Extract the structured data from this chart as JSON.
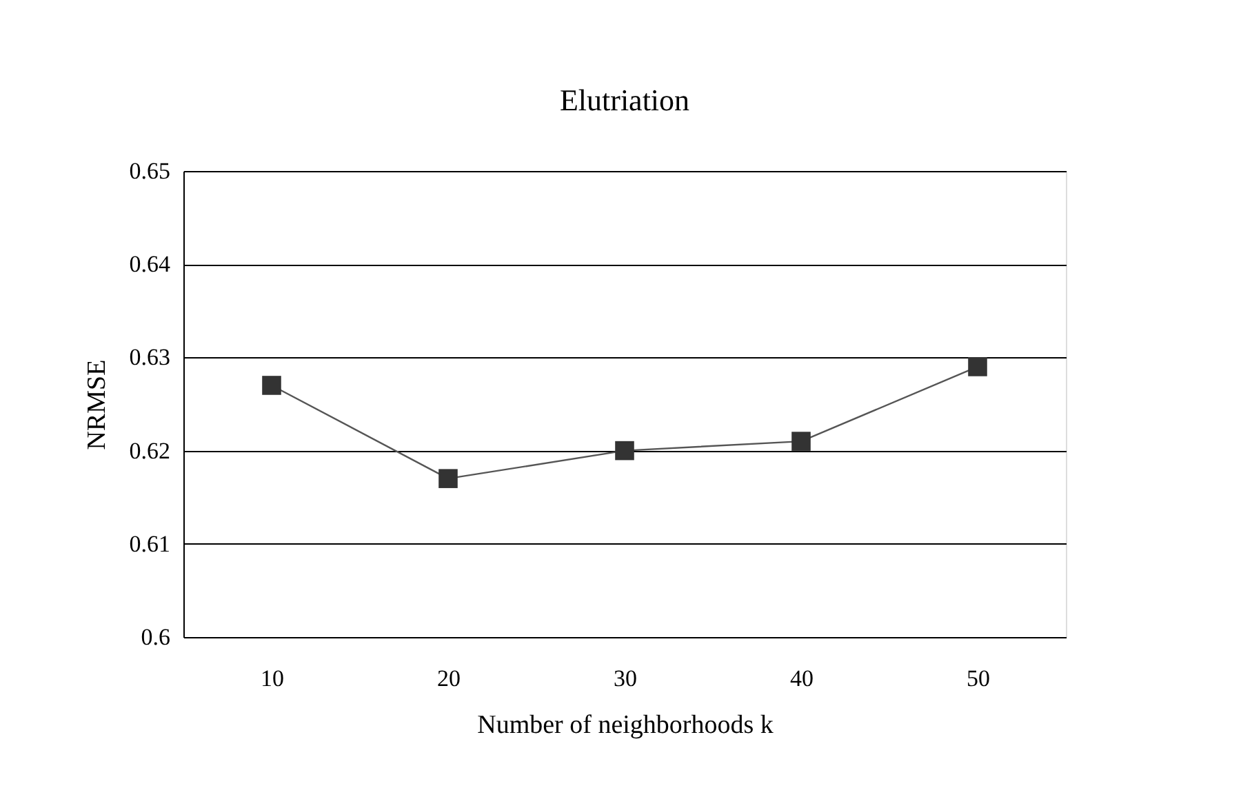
{
  "chart_data": {
    "type": "line",
    "title": "Elutriation",
    "xlabel": "Number of neighborhoods k",
    "ylabel": "NRMSE",
    "categories": [
      "10",
      "20",
      "30",
      "40",
      "50"
    ],
    "series": [
      {
        "color": "#333333",
        "values": [
          0.627,
          0.617,
          0.62,
          0.621,
          0.629
        ]
      }
    ],
    "ylim": [
      0.6,
      0.65
    ],
    "yticks": [
      0.6,
      0.61,
      0.62,
      0.63,
      0.64,
      0.65
    ],
    "grid": "y",
    "marker": "square",
    "line_style": "solid"
  }
}
